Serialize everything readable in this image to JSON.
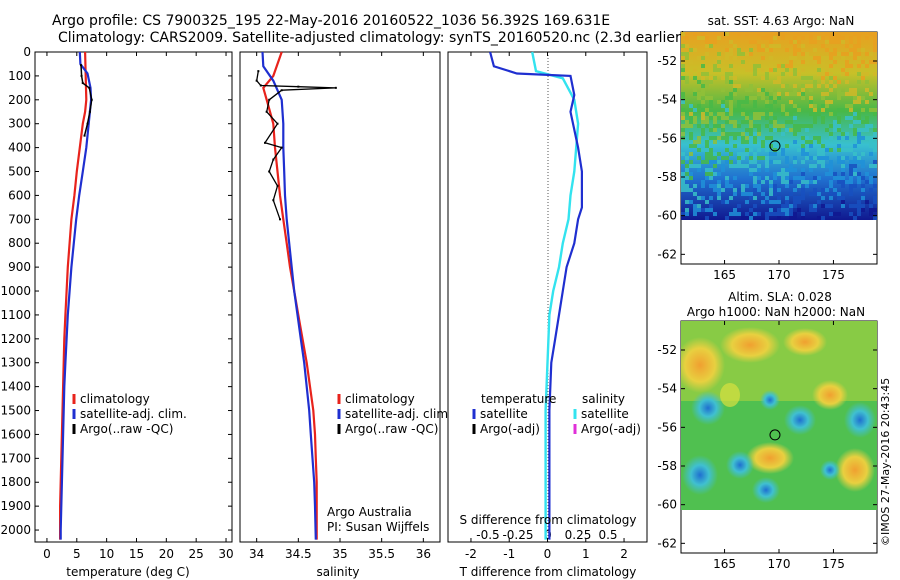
{
  "header": {
    "line1": "Argo profile: CS 7900325_195 22-May-2016 20160522_1036 56.392S 169.631E",
    "line2": "Climatology: CARS2009. Satellite-adjusted climatology: synTS_20160520.nc (2.3d earlier)"
  },
  "colors": {
    "climatology": "#e8231c",
    "satellite": "#1f2fd0",
    "argo": "#000000",
    "salinity_satellite": "#33e3ef",
    "salinity_argo": "#e030d8"
  },
  "chart_data": [
    {
      "type": "line",
      "xlabel": "temperature (deg C)",
      "xlim": [
        -2,
        31
      ],
      "xticks": [
        0,
        5,
        10,
        15,
        20,
        25,
        30
      ],
      "ylim": [
        2050,
        0
      ],
      "yticks": [
        0,
        100,
        200,
        300,
        400,
        500,
        600,
        700,
        800,
        900,
        1000,
        1100,
        1200,
        1300,
        1400,
        1500,
        1600,
        1700,
        1800,
        1900,
        2000
      ],
      "legend": [
        "climatology",
        "satellite-adj. clim.",
        "Argo(..raw -QC)"
      ],
      "legend_position": "lower-right",
      "series": [
        {
          "name": "climatology",
          "x": [
            6.4,
            6.5,
            6.6,
            6.4,
            6.0,
            5.5,
            5.0,
            4.6,
            4.1,
            3.8,
            3.5,
            3.3,
            3.1,
            2.9,
            2.8,
            2.7,
            2.6,
            2.5,
            2.4,
            2.3,
            2.2,
            2.2
          ],
          "y": [
            0,
            100,
            200,
            250,
            300,
            400,
            500,
            600,
            700,
            800,
            900,
            1000,
            1100,
            1200,
            1300,
            1400,
            1500,
            1600,
            1700,
            1800,
            1900,
            2040
          ]
        },
        {
          "name": "satellite-adj. clim.",
          "x": [
            5.5,
            5.6,
            6.8,
            7.3,
            7.4,
            7.0,
            6.6,
            6.0,
            5.4,
            4.9,
            4.5,
            4.1,
            3.8,
            3.5,
            3.3,
            3.1,
            2.9,
            2.8,
            2.7,
            2.6,
            2.5,
            2.4,
            2.3,
            2.3
          ],
          "y": [
            0,
            50,
            90,
            150,
            200,
            300,
            400,
            500,
            600,
            700,
            800,
            900,
            1000,
            1100,
            1200,
            1300,
            1400,
            1500,
            1600,
            1700,
            1800,
            1900,
            2000,
            2040
          ]
        },
        {
          "name": "Argo(..raw -QC)",
          "x": [
            5.7,
            5.8,
            6.0,
            7.1,
            7.5,
            7.2,
            6.8,
            6.3
          ],
          "y": [
            55,
            100,
            130,
            150,
            200,
            250,
            300,
            350
          ]
        }
      ]
    },
    {
      "type": "line",
      "xlabel": "salinity",
      "xlim": [
        33.8,
        36.2
      ],
      "xticks": [
        34,
        34.5,
        35,
        35.5,
        36
      ],
      "ylim": [
        2050,
        0
      ],
      "legend": [
        "climatology",
        "satellite-adj. clim.",
        "Argo(..raw -QC)"
      ],
      "legend_position": "lower-right",
      "annotations": [
        "Argo Australia",
        "PI: Susan Wijffels"
      ],
      "series": [
        {
          "name": "climatology",
          "x": [
            34.3,
            34.2,
            34.08,
            34.12,
            34.2,
            34.22,
            34.25,
            34.28,
            34.32,
            34.36,
            34.4,
            34.45,
            34.5,
            34.55,
            34.6,
            34.64,
            34.68,
            34.7,
            34.71,
            34.72,
            34.72
          ],
          "y": [
            0,
            100,
            150,
            200,
            300,
            400,
            500,
            600,
            700,
            800,
            900,
            1000,
            1100,
            1200,
            1300,
            1400,
            1500,
            1600,
            1700,
            1800,
            2040
          ]
        },
        {
          "name": "satellite-adj. clim.",
          "x": [
            34.07,
            34.08,
            34.2,
            34.3,
            34.32,
            34.32,
            34.33,
            34.34,
            34.36,
            34.39,
            34.42,
            34.45,
            34.49,
            34.53,
            34.57,
            34.6,
            34.63,
            34.65,
            34.67,
            34.69,
            34.7,
            34.71
          ],
          "y": [
            0,
            60,
            120,
            200,
            300,
            400,
            500,
            600,
            700,
            800,
            900,
            1000,
            1100,
            1200,
            1300,
            1400,
            1500,
            1600,
            1700,
            1800,
            1900,
            2040
          ]
        },
        {
          "name": "Argo(..raw -QC)",
          "x": [
            34.02,
            34.0,
            34.05,
            34.5,
            34.95,
            34.3,
            34.15,
            34.12,
            34.25,
            34.1,
            34.3,
            34.2,
            34.15,
            34.25,
            34.2,
            34.28
          ],
          "y": [
            80,
            120,
            140,
            145,
            150,
            160,
            200,
            250,
            300,
            380,
            400,
            450,
            500,
            560,
            620,
            700
          ]
        }
      ]
    },
    {
      "type": "line",
      "xlabel": "T difference from climatology",
      "xlabel_top": "S difference from climatology",
      "xlim": [
        -2.6,
        2.6
      ],
      "xticks": [
        -2,
        -1,
        0,
        1,
        2
      ],
      "xticks_s": [
        -0.5,
        -0.25,
        0,
        0.25,
        0.5
      ],
      "ylim": [
        2050,
        0
      ],
      "legend": [
        "temperature",
        "satellite",
        "Argo(-adj)",
        "salinity",
        "satellite",
        "Argo(-adj)"
      ],
      "legend_position": "lower",
      "series": [
        {
          "name": "temperature satellite",
          "x": [
            -1.5,
            -1.4,
            -0.8,
            0.6,
            0.7,
            0.6,
            0.8,
            0.9,
            0.9,
            0.8,
            0.7,
            0.5,
            0.4,
            0.3,
            0.2,
            0.1,
            0.05,
            0.05,
            0.05,
            0.05
          ],
          "y": [
            0,
            60,
            90,
            100,
            180,
            250,
            400,
            500,
            650,
            700,
            800,
            900,
            1000,
            1100,
            1200,
            1300,
            1500,
            1700,
            1900,
            2040
          ]
        },
        {
          "name": "salinity satellite",
          "x": [
            -0.4,
            -0.3,
            0.4,
            0.7,
            0.8,
            0.75,
            0.7,
            0.6,
            0.55,
            0.4,
            0.3,
            0.15,
            0.05,
            0.0,
            -0.05,
            -0.05,
            -0.05
          ],
          "y": [
            0,
            80,
            110,
            200,
            300,
            400,
            500,
            600,
            700,
            800,
            900,
            1000,
            1100,
            1300,
            1500,
            1800,
            2040
          ]
        }
      ]
    },
    {
      "type": "heatmap",
      "title": "sat. SST: 4.63 Argo: NaN",
      "xlim": [
        161,
        179
      ],
      "ylim": [
        -62.5,
        -50.5
      ],
      "xticks": [
        165,
        170,
        175
      ],
      "yticks": [
        -52,
        -54,
        -56,
        -58,
        -60,
        -62
      ],
      "marker": {
        "lon": 169.631,
        "lat": -56.392
      }
    },
    {
      "type": "heatmap",
      "title": "Altim. SLA: 0.028",
      "subtitle": "Argo h1000: NaN h2000: NaN",
      "xlim": [
        161,
        179
      ],
      "ylim": [
        -62.5,
        -50.5
      ],
      "xticks": [
        165,
        170,
        175
      ],
      "yticks": [
        -52,
        -54,
        -56,
        -58,
        -60,
        -62
      ],
      "marker": {
        "lon": 169.631,
        "lat": -56.392
      }
    }
  ],
  "credit": "©IMOS 27-May-2016 20:43:45"
}
